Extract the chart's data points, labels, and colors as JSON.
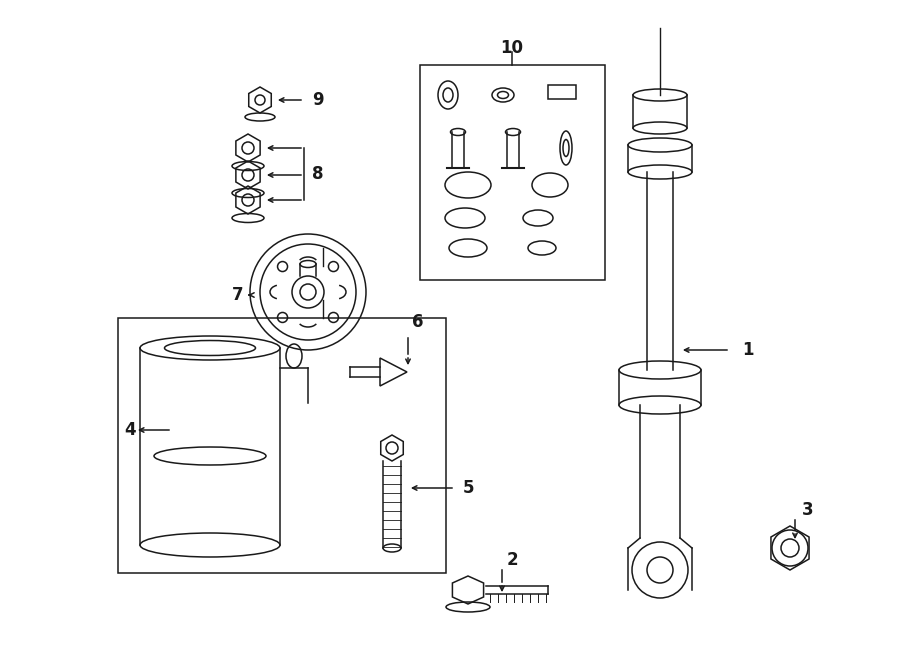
{
  "bg_color": "#ffffff",
  "line_color": "#1a1a1a",
  "fig_width": 9.0,
  "fig_height": 6.61,
  "dpi": 100,
  "lw": 1.1
}
